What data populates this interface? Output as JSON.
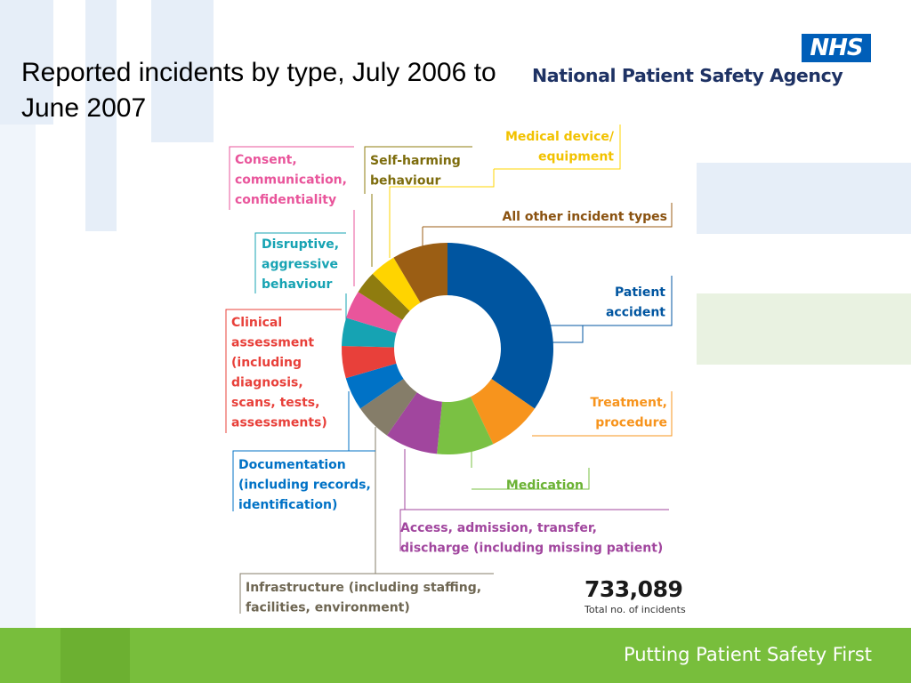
{
  "title": "Reported incidents by type, July 2006 to June 2007",
  "header": {
    "logo_text": "NHS",
    "agency_name": "National Patient Safety Agency"
  },
  "footer": {
    "tagline": "Putting Patient Safety First"
  },
  "total": {
    "value": "733,089",
    "label": "Total no. of incidents"
  },
  "colors": {
    "patient_accident": "#0055a0",
    "treatment_procedure": "#f7941d",
    "medication": "#7ac143",
    "access_admission": "#a1469e",
    "infrastructure": "#857d69",
    "documentation": "#0072c6",
    "clinical_assessment": "#e8403a",
    "disruptive": "#16a3b3",
    "consent": "#e9559b",
    "self_harming": "#8f7c0f",
    "medical_device": "#ffd400",
    "all_other": "#9b5e14",
    "footer_green": "#78be3c",
    "nhs_blue": "#005eb8"
  },
  "chart_data": {
    "type": "pie",
    "donut": true,
    "title": "Reported incidents by type, July 2006 to June 2007",
    "total": 733089,
    "unit": "share of total incidents (%)",
    "categories": [
      {
        "key": "patient_accident",
        "label": "Patient accident",
        "value": 34.6
      },
      {
        "key": "treatment_procedure",
        "label": "Treatment, procedure",
        "value": 8.3
      },
      {
        "key": "medication",
        "label": "Medication",
        "value": 8.7
      },
      {
        "key": "access_admission",
        "label": "Access, admission, transfer, discharge (including missing patient)",
        "value": 8.1
      },
      {
        "key": "infrastructure",
        "label": "Infrastructure (including staffing, facilities, environment)",
        "value": 5.7
      },
      {
        "key": "documentation",
        "label": "Documentation (including records, identification)",
        "value": 5.1
      },
      {
        "key": "clinical_assessment",
        "label": "Clinical assessment (including diagnosis, scans, tests, assessments)",
        "value": 4.9
      },
      {
        "key": "disruptive",
        "label": "Disruptive, aggressive behaviour",
        "value": 4.3
      },
      {
        "key": "consent",
        "label": "Consent, communication, confidentiality",
        "value": 4.3
      },
      {
        "key": "self_harming",
        "label": "Self-harming behaviour",
        "value": 3.5
      },
      {
        "key": "medical_device",
        "label": "Medical device/ equipment",
        "value": 4.0
      },
      {
        "key": "all_other",
        "label": "All other incident types",
        "value": 8.5
      }
    ],
    "legend_placement": "callouts around chart"
  }
}
